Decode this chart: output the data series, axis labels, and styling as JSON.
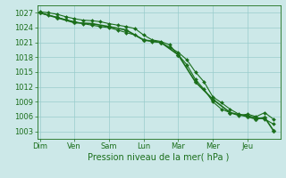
{
  "background_color": "#cce8e8",
  "grid_color": "#99cccc",
  "line_color": "#1a6e1a",
  "title": "Pression niveau de la mer( hPa )",
  "yticks": [
    1003,
    1006,
    1009,
    1012,
    1015,
    1018,
    1021,
    1024,
    1027
  ],
  "ylim": [
    1001.5,
    1028.5
  ],
  "x_day_labels": [
    "Dim",
    "Ven",
    "Sam",
    "Lun",
    "Mar",
    "Mer",
    "Jeu"
  ],
  "x_day_positions": [
    0,
    4,
    8,
    12,
    16,
    20,
    24
  ],
  "xlim": [
    -0.3,
    27.8
  ],
  "series1_x": [
    0,
    1,
    2,
    3,
    4,
    5,
    6,
    7,
    8,
    9,
    10,
    11,
    12,
    13,
    14,
    15,
    16,
    17,
    18,
    19,
    20,
    21,
    22,
    23,
    24,
    25,
    26,
    27
  ],
  "series1_y": [
    1027.0,
    1026.5,
    1026.1,
    1025.6,
    1025.2,
    1024.8,
    1024.5,
    1024.2,
    1024.0,
    1023.5,
    1023.0,
    1022.5,
    1021.5,
    1021.2,
    1021.0,
    1020.0,
    1019.0,
    1017.5,
    1015.0,
    1013.0,
    1010.0,
    1008.8,
    1007.5,
    1006.5,
    1006.2,
    1005.8,
    1005.5,
    1004.5
  ],
  "series2_x": [
    0,
    1,
    2,
    3,
    4,
    5,
    6,
    7,
    8,
    9,
    10,
    11,
    12,
    13,
    14,
    15,
    16,
    17,
    18,
    19,
    20,
    21,
    22,
    23,
    24,
    25,
    26,
    27
  ],
  "series2_y": [
    1027.2,
    1027.0,
    1026.7,
    1026.2,
    1025.8,
    1025.5,
    1025.4,
    1025.2,
    1024.8,
    1024.5,
    1024.2,
    1023.8,
    1022.5,
    1021.5,
    1021.2,
    1020.5,
    1018.5,
    1016.5,
    1013.5,
    1011.5,
    1009.0,
    1007.5,
    1006.8,
    1006.2,
    1006.5,
    1006.0,
    1006.8,
    1005.5
  ],
  "series3_x": [
    0,
    2,
    4,
    6,
    8,
    10,
    12,
    14,
    16,
    18,
    20,
    22,
    24,
    25,
    26,
    27
  ],
  "series3_y": [
    1027.0,
    1026.0,
    1025.0,
    1024.8,
    1024.2,
    1023.5,
    1021.5,
    1021.0,
    1018.5,
    1013.0,
    1009.5,
    1006.8,
    1006.0,
    1005.5,
    1005.8,
    1003.2
  ],
  "lw1": 0.8,
  "lw2": 0.8,
  "lw3": 1.2,
  "ms1": 2.0,
  "ms2": 2.0,
  "ms3": 2.5,
  "tick_fontsize": 6,
  "xlabel_fontsize": 7
}
